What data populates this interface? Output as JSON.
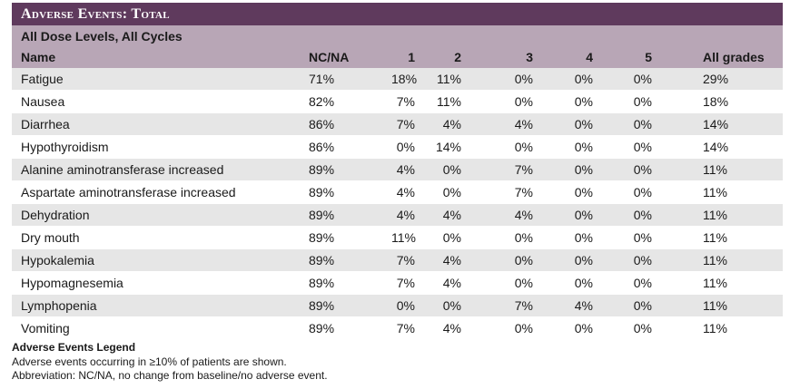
{
  "title": "Adverse Events: Total",
  "subtitle": "All Dose Levels, All Cycles",
  "columns": [
    "Name",
    "NC/NA",
    "1",
    "2",
    "3",
    "4",
    "5",
    "All grades"
  ],
  "rows": [
    [
      "Fatigue",
      "71%",
      "18%",
      "11%",
      "0%",
      "0%",
      "0%",
      "29%"
    ],
    [
      "Nausea",
      "82%",
      "7%",
      "11%",
      "0%",
      "0%",
      "0%",
      "18%"
    ],
    [
      "Diarrhea",
      "86%",
      "7%",
      "4%",
      "4%",
      "0%",
      "0%",
      "14%"
    ],
    [
      "Hypothyroidism",
      "86%",
      "0%",
      "14%",
      "0%",
      "0%",
      "0%",
      "14%"
    ],
    [
      "Alanine aminotransferase increased",
      "89%",
      "4%",
      "0%",
      "7%",
      "0%",
      "0%",
      "11%"
    ],
    [
      "Aspartate aminotransferase increased",
      "89%",
      "4%",
      "0%",
      "7%",
      "0%",
      "0%",
      "11%"
    ],
    [
      "Dehydration",
      "89%",
      "4%",
      "4%",
      "4%",
      "0%",
      "0%",
      "11%"
    ],
    [
      "Dry mouth",
      "89%",
      "11%",
      "0%",
      "0%",
      "0%",
      "0%",
      "11%"
    ],
    [
      "Hypokalemia",
      "89%",
      "7%",
      "4%",
      "0%",
      "0%",
      "0%",
      "11%"
    ],
    [
      "Hypomagnesemia",
      "89%",
      "7%",
      "4%",
      "0%",
      "0%",
      "0%",
      "11%"
    ],
    [
      "Lymphopenia",
      "89%",
      "0%",
      "0%",
      "7%",
      "4%",
      "0%",
      "11%"
    ],
    [
      "Vomiting",
      "89%",
      "7%",
      "4%",
      "0%",
      "0%",
      "0%",
      "11%"
    ]
  ],
  "legend": {
    "title": "Adverse Events Legend",
    "lines": [
      "Adverse events occurring in ≥10% of patients are shown.",
      "Abbreviation: NC/NA, no change from baseline/no adverse event."
    ]
  },
  "colors": {
    "title_bar": "#5f3a5d",
    "header_band": "#b8a6b6",
    "zebra": "#e6e6e6"
  }
}
